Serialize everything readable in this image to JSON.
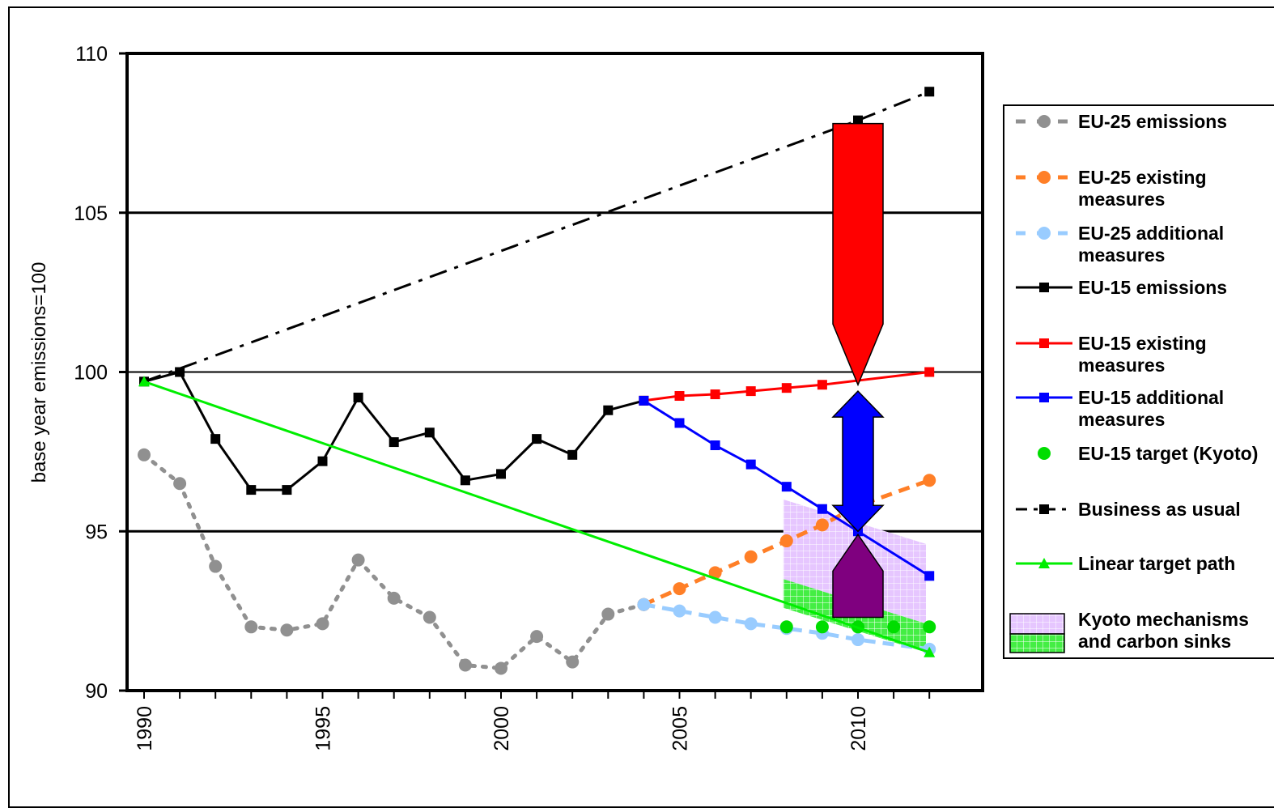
{
  "chart_data": {
    "type": "line",
    "title": "",
    "xlabel": "",
    "ylabel": "base year emissions=100",
    "xlim": [
      1990,
      2012
    ],
    "ylim": [
      90,
      110
    ],
    "xticks": [
      "1990",
      "1995",
      "2000",
      "2005",
      "2010"
    ],
    "yticks": [
      "90",
      "95",
      "100",
      "105",
      "110"
    ],
    "grid": "horizontal at 95, 100, 105",
    "legend_position": "right",
    "series": [
      {
        "name": "EU-25 emissions",
        "color": "#909090",
        "style": "dotted",
        "marker": "circle",
        "x": [
          1990,
          1991,
          1992,
          1993,
          1994,
          1995,
          1996,
          1997,
          1998,
          1999,
          2000,
          2001,
          2002,
          2003,
          2004
        ],
        "y": [
          97.4,
          96.5,
          93.9,
          92.0,
          91.9,
          92.1,
          94.1,
          92.9,
          92.3,
          90.8,
          90.7,
          91.7,
          90.9,
          92.4,
          92.7
        ]
      },
      {
        "name": "EU-25 existing measures",
        "color": "#ff7f27",
        "style": "dashed",
        "marker": "circle",
        "x": [
          2004,
          2005,
          2006,
          2007,
          2008,
          2009,
          2010,
          2012
        ],
        "y": [
          92.7,
          93.2,
          93.7,
          94.2,
          94.7,
          95.2,
          95.8,
          96.6
        ]
      },
      {
        "name": "EU-25 additional measures",
        "color": "#99ccff",
        "style": "dashed",
        "marker": "circle",
        "x": [
          2004,
          2005,
          2006,
          2007,
          2008,
          2009,
          2010,
          2012
        ],
        "y": [
          92.7,
          92.5,
          92.3,
          92.1,
          91.95,
          91.8,
          91.6,
          91.3
        ]
      },
      {
        "name": "EU-15 emissions",
        "color": "#000000",
        "style": "solid",
        "marker": "square",
        "x": [
          1990,
          1991,
          1992,
          1993,
          1994,
          1995,
          1996,
          1997,
          1998,
          1999,
          2000,
          2001,
          2002,
          2003,
          2004
        ],
        "y": [
          99.7,
          100.0,
          97.9,
          96.3,
          96.3,
          97.2,
          99.2,
          97.8,
          98.1,
          96.6,
          96.8,
          97.9,
          97.4,
          98.8,
          99.1
        ]
      },
      {
        "name": "EU-15 existing measures",
        "color": "#ff0000",
        "style": "solid",
        "marker": "square",
        "x": [
          2004,
          2005,
          2006,
          2007,
          2008,
          2009,
          2012
        ],
        "y": [
          99.1,
          99.25,
          99.3,
          99.4,
          99.5,
          99.6,
          100.0
        ]
      },
      {
        "name": "EU-15 additional measures",
        "color": "#0000ff",
        "style": "solid",
        "marker": "square",
        "x": [
          2004,
          2005,
          2006,
          2007,
          2008,
          2009,
          2010,
          2012
        ],
        "y": [
          99.1,
          98.4,
          97.7,
          97.1,
          96.4,
          95.7,
          95.0,
          93.6
        ]
      },
      {
        "name": "EU-15 target (Kyoto)",
        "color": "#00dd00",
        "style": "none",
        "marker": "circle",
        "x": [
          2008,
          2009,
          2010,
          2011,
          2012
        ],
        "y": [
          92.0,
          92.0,
          92.0,
          92.0,
          92.0
        ]
      },
      {
        "name": "Business as usual",
        "color": "#000000",
        "style": "dashdot",
        "marker": "square",
        "x": [
          1990,
          2010,
          2012
        ],
        "y": [
          99.7,
          107.9,
          108.8
        ]
      },
      {
        "name": "Linear target path",
        "color": "#00ee00",
        "style": "solid",
        "marker": "triangle",
        "x": [
          1990,
          2012
        ],
        "y": [
          99.7,
          91.2
        ]
      }
    ],
    "legend": [
      {
        "label": "EU-25 emissions",
        "lines": [
          "EU-25 emissions"
        ]
      },
      {
        "label": "EU-25 existing measures",
        "lines": [
          "EU-25 existing",
          "measures"
        ]
      },
      {
        "label": "EU-25 additional measures",
        "lines": [
          "EU-25 additional",
          "measures"
        ]
      },
      {
        "label": "EU-15 emissions",
        "lines": [
          "EU-15 emissions"
        ]
      },
      {
        "label": "EU-15 existing measures",
        "lines": [
          "EU-15 existing",
          "measures"
        ]
      },
      {
        "label": "EU-15 additional measures",
        "lines": [
          "EU-15 additional",
          "measures"
        ]
      },
      {
        "label": "EU-15 target (Kyoto)",
        "lines": [
          "EU-15 target (Kyoto)"
        ]
      },
      {
        "label": "Business as usual",
        "lines": [
          "Business as usual"
        ]
      },
      {
        "label": "Linear target path",
        "lines": [
          "Linear target path"
        ]
      },
      {
        "label": "Kyoto mechanisms and carbon sinks",
        "lines": [
          "Kyoto mechanisms",
          "and carbon sinks"
        ]
      }
    ],
    "kyoto_region": {
      "color_mechanisms": "#e0b8ff",
      "color_sinks": "#44ee44",
      "x_range": [
        2008,
        2012
      ],
      "upper_start": 96.0,
      "upper_end": 94.6,
      "mid_start": 93.5,
      "mid_end": 92.1,
      "lower_start": 92.6,
      "lower_end": 91.2
    },
    "arrows": [
      {
        "color": "#ff0000",
        "x": 2010,
        "from": 107.8,
        "to": 99.6
      },
      {
        "color": "#0000ff",
        "x": 2010,
        "from": 99.4,
        "to": 95.0
      },
      {
        "color": "#7f007f",
        "x": 2010,
        "from": 92.3,
        "to": 94.9
      }
    ]
  }
}
